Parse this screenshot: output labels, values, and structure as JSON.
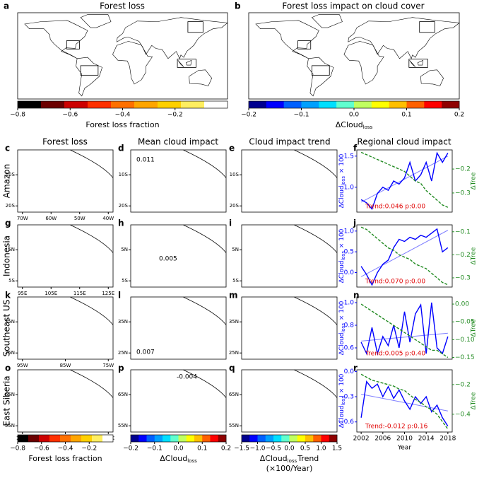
{
  "top_titles": [
    "Forest loss",
    "Forest loss impact on cloud cover"
  ],
  "column_titles": [
    "Forest loss",
    "Mean cloud impact",
    "Cloud impact trend",
    "Regional cloud impact"
  ],
  "row_labels": [
    "Amazon",
    "Indonesia",
    "Southeast US",
    "East Siberia"
  ],
  "world_maps": [
    {
      "label": "a"
    },
    {
      "label": "b"
    }
  ],
  "maps": [
    {
      "label": "c",
      "xticks": [
        "70W",
        "60W",
        "50W",
        "40W"
      ],
      "yticks": [
        "10S",
        "20S"
      ]
    },
    {
      "label": "d",
      "yticks": [
        "10S",
        "20S"
      ],
      "annotation": "0.011"
    },
    {
      "label": "e",
      "yticks": [
        "10S",
        "20S"
      ]
    },
    {
      "label": "g",
      "xticks": [
        "95E",
        "105E",
        "115E",
        "125E"
      ],
      "yticks": [
        "5N",
        "5S"
      ]
    },
    {
      "label": "h",
      "yticks": [
        "5N",
        "5S"
      ],
      "annotation": "0.005"
    },
    {
      "label": "i",
      "yticks": [
        "5N",
        "5S"
      ]
    },
    {
      "label": "k",
      "xticks": [
        "95W",
        "85W",
        "75W"
      ],
      "yticks": [
        "35N",
        "25N"
      ]
    },
    {
      "label": "l",
      "yticks": [
        "35N",
        "25N"
      ],
      "annotation": "0.007"
    },
    {
      "label": "m",
      "yticks": [
        "35N",
        "25N"
      ]
    },
    {
      "label": "o",
      "xticks": [
        "115E",
        "125E",
        "135E"
      ],
      "yticks": [
        "65N",
        "55N"
      ]
    },
    {
      "label": "p",
      "yticks": [
        "65N",
        "55N"
      ],
      "annotation": "-0.004"
    },
    {
      "label": "q",
      "yticks": [
        "65N",
        "55N"
      ]
    }
  ],
  "colorbars": [
    {
      "colors": [
        "#000000",
        "#6b0000",
        "#cc0000",
        "#ff3000",
        "#ff7000",
        "#ffa500",
        "#ffd000",
        "#ffee60",
        "#ffffff"
      ],
      "lim": [
        -0.8,
        0
      ],
      "ticks": [
        {
          "value": -0.8,
          "label": "−0.8"
        },
        {
          "value": -0.6,
          "label": "−0.6"
        },
        {
          "value": -0.4,
          "label": "−0.4"
        },
        {
          "value": -0.2,
          "label": "−0.2"
        }
      ],
      "label": {
        "main": "Forest loss fraction"
      }
    },
    {
      "colors": [
        "#00008f",
        "#0000ff",
        "#0060ff",
        "#00a0ff",
        "#00dfff",
        "#60ffcf",
        "#c0ff60",
        "#ffff00",
        "#ffbf00",
        "#ff6000",
        "#ff0000",
        "#8f0000"
      ],
      "lim": [
        -0.2,
        0.2
      ],
      "ticks": [
        {
          "value": -0.2,
          "label": "−0.2"
        },
        {
          "value": -0.1,
          "label": "−0.1"
        },
        {
          "value": 0,
          "label": "0.0"
        },
        0.1,
        0.2
      ],
      "label": {
        "main": "ΔCloud",
        "sub": "loss"
      }
    },
    {
      "colors": [
        "#000000",
        "#6b0000",
        "#cc0000",
        "#ff3000",
        "#ff7000",
        "#ffa500",
        "#ffd000",
        "#ffee60",
        "#ffffff"
      ],
      "lim": [
        -0.8,
        0
      ],
      "ticks": [
        {
          "value": -0.8,
          "label": "−0.8"
        },
        {
          "value": -0.6,
          "label": "−0.6"
        },
        {
          "value": -0.4,
          "label": "−0.4"
        },
        {
          "value": -0.2,
          "label": "−0.2"
        }
      ],
      "label": {
        "main": "Forest loss fraction"
      }
    },
    {
      "colors": [
        "#00008f",
        "#0000ff",
        "#0060ff",
        "#00a0ff",
        "#00dfff",
        "#60ffcf",
        "#c0ff60",
        "#ffff00",
        "#ffbf00",
        "#ff6000",
        "#ff0000",
        "#8f0000"
      ],
      "lim": [
        -0.2,
        0.2
      ],
      "ticks": [
        {
          "value": -0.2,
          "label": "−0.2"
        },
        {
          "value": -0.1,
          "label": "−0.1"
        },
        {
          "value": 0,
          "label": "0.0"
        },
        0.1,
        0.2
      ],
      "label": {
        "main": "ΔCloud",
        "sub": "loss"
      }
    },
    {
      "colors": [
        "#00008f",
        "#0000ff",
        "#0060ff",
        "#00a0ff",
        "#00dfff",
        "#60ffcf",
        "#c0ff60",
        "#ffff00",
        "#ffbf00",
        "#ff6000",
        "#ff0000",
        "#8f0000"
      ],
      "lim": [
        -1.5,
        1.5
      ],
      "ticks": [
        {
          "value": -1.5,
          "label": "−1.5"
        },
        {
          "value": -1,
          "label": "−1.0"
        },
        {
          "value": -0.5,
          "label": "−0.5"
        },
        {
          "value": 0,
          "label": "0.0"
        },
        0.5,
        {
          "value": 1,
          "label": "1.0"
        },
        1.5
      ],
      "label": {
        "main": "ΔCloud",
        "sub": "loss",
        "suffix": "Trend",
        "line2": "(×100/Year)"
      }
    }
  ],
  "chart_data": [
    {
      "type": "line",
      "label": "f",
      "x": [
        2002,
        2003,
        2004,
        2005,
        2006,
        2007,
        2008,
        2009,
        2010,
        2011,
        2012,
        2013,
        2014,
        2015,
        2016,
        2017,
        2018
      ],
      "xlim": [
        2001.2,
        2018.8
      ],
      "ylim": [
        0.6,
        1.6
      ],
      "yticks": [
        {
          "value": 1,
          "label": "1.0"
        },
        1.5
      ],
      "y2lim": [
        -0.38,
        -0.12
      ],
      "y2ticks": [
        {
          "value": -0.2,
          "label": "−0.2"
        },
        {
          "value": -0.3,
          "label": "−0.3"
        }
      ],
      "ylabel": {
        "main": "ΔCloud",
        "sub": "loss",
        "suffix": " × 100"
      },
      "y2label": "ΔTree",
      "annotation": "Trend:0.046 p:0.00",
      "series": [
        {
          "color": "#0000ff",
          "values": [
            0.8,
            0.75,
            0.65,
            0.9,
            1.0,
            0.95,
            1.1,
            1.05,
            1.15,
            1.4,
            1.1,
            1.2,
            1.4,
            1.1,
            1.55,
            1.4,
            1.55
          ]
        },
        {
          "color": "#228b22",
          "dashed": true,
          "axis": "y2",
          "values": [
            -0.13,
            -0.14,
            -0.15,
            -0.16,
            -0.17,
            -0.18,
            -0.19,
            -0.2,
            -0.21,
            -0.23,
            -0.25,
            -0.26,
            -0.29,
            -0.31,
            -0.33,
            -0.35,
            -0.36
          ]
        }
      ],
      "trend": {
        "color": "#8080ff",
        "values": [
          0.76,
          1.5
        ]
      }
    },
    {
      "type": "line",
      "label": "j",
      "x": [
        2002,
        2003,
        2004,
        2005,
        2006,
        2007,
        2008,
        2009,
        2010,
        2011,
        2012,
        2013,
        2014,
        2015,
        2016,
        2017,
        2018
      ],
      "xlim": [
        2001.2,
        2018.8
      ],
      "ylim": [
        -0.35,
        1.15
      ],
      "yticks": [
        {
          "value": 0,
          "label": "0.0"
        },
        0.5,
        {
          "value": 1,
          "label": "1.0"
        }
      ],
      "y2lim": [
        -0.34,
        -0.07
      ],
      "y2ticks": [
        {
          "value": -0.1,
          "label": "−0.1"
        },
        {
          "value": -0.2,
          "label": "−0.2"
        },
        {
          "value": -0.3,
          "label": "−0.3"
        }
      ],
      "ylabel": {
        "main": "ΔCloud",
        "sub": "loss",
        "suffix": " × 100"
      },
      "y2label": "ΔTree",
      "annotation": "Trend:0.070 p:0.00",
      "series": [
        {
          "color": "#0000ff",
          "values": [
            0.15,
            -0.05,
            -0.3,
            0.0,
            0.2,
            0.3,
            0.6,
            0.8,
            0.75,
            0.85,
            0.8,
            0.9,
            0.85,
            0.95,
            1.05,
            0.5,
            0.6
          ]
        },
        {
          "color": "#228b22",
          "dashed": true,
          "axis": "y2",
          "values": [
            -0.08,
            -0.09,
            -0.11,
            -0.13,
            -0.15,
            -0.17,
            -0.18,
            -0.2,
            -0.21,
            -0.22,
            -0.24,
            -0.25,
            -0.26,
            -0.28,
            -0.3,
            -0.32,
            -0.33
          ]
        }
      ],
      "trend": {
        "color": "#8080ff",
        "values": [
          -0.1,
          1.02
        ]
      }
    },
    {
      "type": "line",
      "label": "n",
      "x": [
        2002,
        2003,
        2004,
        2005,
        2006,
        2007,
        2008,
        2009,
        2010,
        2011,
        2012,
        2013,
        2014,
        2015,
        2016,
        2017,
        2018
      ],
      "xlim": [
        2001.2,
        2018.8
      ],
      "ylim": [
        0.5,
        1.05
      ],
      "yticks": [
        0.6,
        0.8,
        {
          "value": 1,
          "label": "1.0"
        }
      ],
      "y2lim": [
        -0.155,
        0.02
      ],
      "y2ticks": [
        {
          "value": 0,
          "label": "0.00"
        },
        {
          "value": -0.05,
          "label": "−0.05"
        },
        {
          "value": -0.1,
          "label": "−0.10"
        },
        {
          "value": -0.15,
          "label": "−0.15"
        }
      ],
      "ylabel": {
        "main": "ΔCloud",
        "sub": "loss",
        "suffix": " × 100"
      },
      "y2label": "ΔTree",
      "annotation": "Trend:0.005 p:0.40",
      "series": [
        {
          "color": "#0000ff",
          "values": [
            0.65,
            0.55,
            0.78,
            0.55,
            0.7,
            0.62,
            0.8,
            0.6,
            0.92,
            0.65,
            0.9,
            0.98,
            0.55,
            1.0,
            0.6,
            0.55,
            0.7
          ]
        },
        {
          "color": "#228b22",
          "dashed": true,
          "axis": "y2",
          "values": [
            0.0,
            -0.01,
            -0.02,
            -0.03,
            -0.04,
            -0.05,
            -0.06,
            -0.07,
            -0.08,
            -0.09,
            -0.1,
            -0.11,
            -0.12,
            -0.13,
            -0.13,
            -0.14,
            -0.15
          ]
        }
      ],
      "trend": {
        "color": "#8080ff",
        "values": [
          0.66,
          0.73
        ]
      }
    },
    {
      "type": "line",
      "label": "r",
      "x": [
        2002,
        2003,
        2004,
        2005,
        2006,
        2007,
        2008,
        2009,
        2010,
        2011,
        2012,
        2013,
        2014,
        2015,
        2016,
        2017,
        2018
      ],
      "xlim": [
        2001.2,
        2018.8
      ],
      "xticks": [
        2002,
        2006,
        2010,
        2014,
        2018
      ],
      "xlabel": "Year",
      "ylim": [
        -0.72,
        0.02
      ],
      "yticks": [
        {
          "value": -0.6,
          "label": "−0.6"
        },
        {
          "value": -0.3,
          "label": "−0.3"
        },
        {
          "value": 0,
          "label": "0.0"
        }
      ],
      "y2lim": [
        -0.52,
        -0.1
      ],
      "y2ticks": [
        {
          "value": -0.2,
          "label": "−0.2"
        },
        {
          "value": -0.4,
          "label": "−0.4"
        }
      ],
      "ylabel": {
        "main": "ΔCloud",
        "sub": "loss",
        "suffix": " × 100"
      },
      "y2label": "ΔTree",
      "annotation": "Trend:-0.012 p:0.16",
      "series": [
        {
          "color": "#0000ff",
          "values": [
            -0.55,
            -0.12,
            -0.2,
            -0.15,
            -0.3,
            -0.18,
            -0.32,
            -0.22,
            -0.35,
            -0.45,
            -0.3,
            -0.38,
            -0.3,
            -0.48,
            -0.4,
            -0.55,
            -0.65
          ]
        },
        {
          "color": "#228b22",
          "dashed": true,
          "axis": "y2",
          "values": [
            -0.13,
            -0.15,
            -0.17,
            -0.18,
            -0.19,
            -0.2,
            -0.21,
            -0.23,
            -0.24,
            -0.27,
            -0.3,
            -0.32,
            -0.35,
            -0.37,
            -0.4,
            -0.45,
            -0.5
          ]
        }
      ],
      "trend": {
        "color": "#8080ff",
        "values": [
          -0.27,
          -0.47
        ]
      }
    }
  ]
}
